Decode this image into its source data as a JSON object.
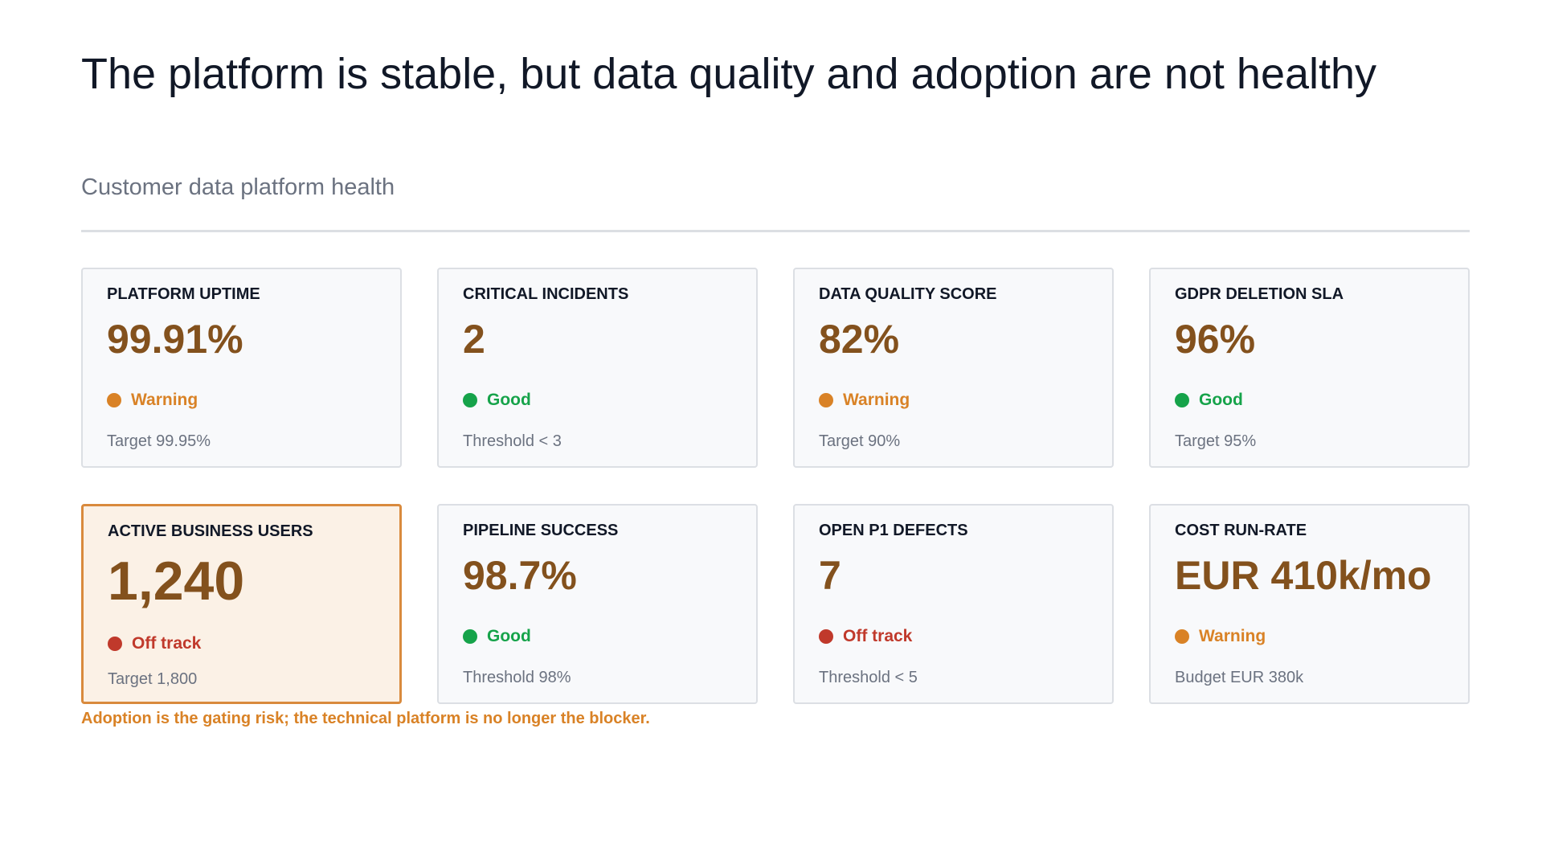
{
  "header": {
    "title": "The platform is stable, but data quality and adoption are not healthy",
    "subtitle": "Customer data platform health"
  },
  "cards": [
    {
      "label": "PLATFORM UPTIME",
      "value": "99.91%",
      "status": "Warning",
      "status_color": "#d98226",
      "target": "Target 99.95%"
    },
    {
      "label": "CRITICAL INCIDENTS",
      "value": "2",
      "status": "Good",
      "status_color": "#16a34a",
      "target": "Threshold < 3"
    },
    {
      "label": "DATA QUALITY SCORE",
      "value": "82%",
      "status": "Warning",
      "status_color": "#d98226",
      "target": "Target 90%"
    },
    {
      "label": "GDPR DELETION SLA",
      "value": "96%",
      "status": "Good",
      "status_color": "#16a34a",
      "target": "Target 95%"
    },
    {
      "label": "ACTIVE BUSINESS USERS",
      "value": "1,240",
      "status": "Off track",
      "status_color": "#c0392b",
      "target": "Target 1,800",
      "highlight": true
    },
    {
      "label": "PIPELINE SUCCESS",
      "value": "98.7%",
      "status": "Good",
      "status_color": "#16a34a",
      "target": "Threshold 98%"
    },
    {
      "label": "OPEN P1 DEFECTS",
      "value": "7",
      "status": "Off track",
      "status_color": "#c0392b",
      "target": "Threshold < 5"
    },
    {
      "label": "COST RUN-RATE",
      "value": "EUR 410k/mo",
      "status": "Warning",
      "status_color": "#d98226",
      "target": "Budget EUR 380k"
    }
  ],
  "note": "Adoption is the gating risk; the technical platform is no longer the blocker."
}
